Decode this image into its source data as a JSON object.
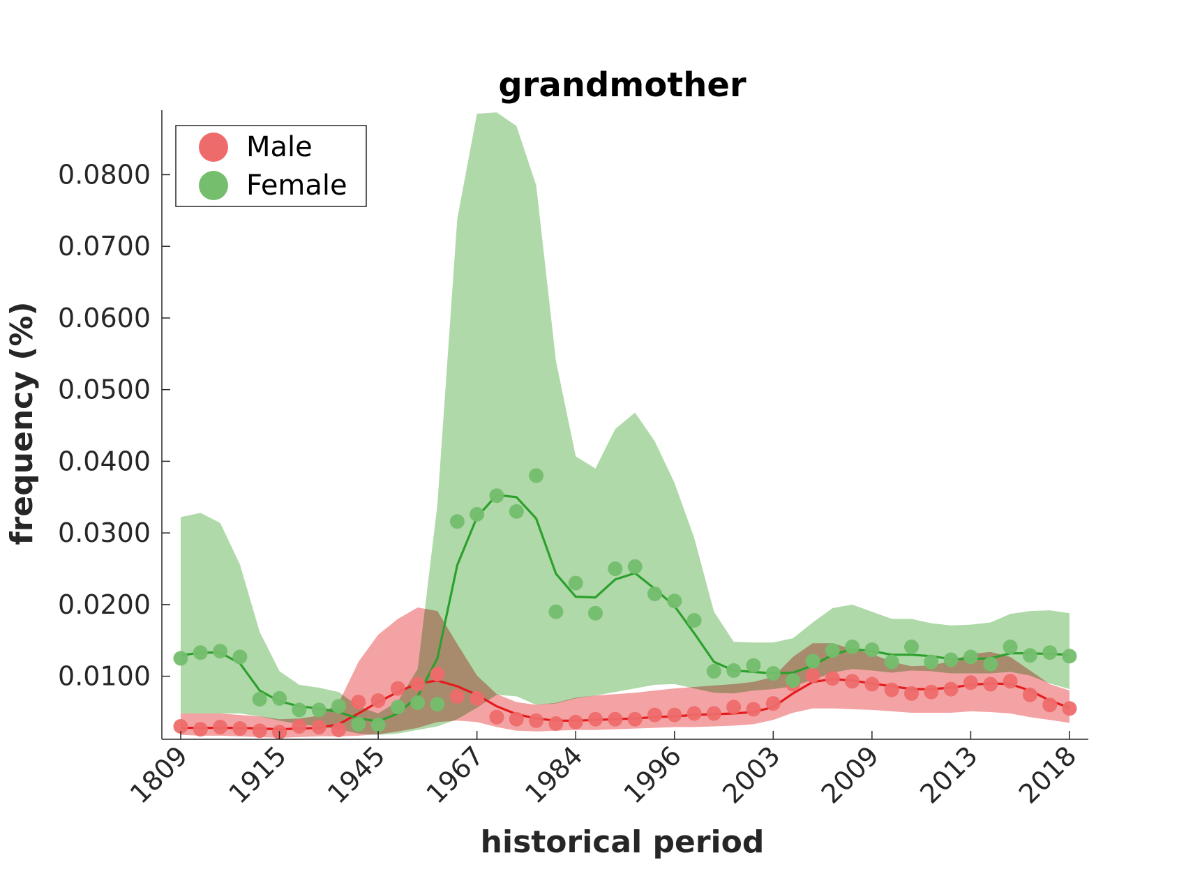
{
  "colors": {
    "male": "#e41a1c",
    "male_marker": "#ee6b6c",
    "male_band": "#f4a3a4",
    "female": "#2ca02c",
    "female_marker": "#74be6d",
    "female_band": "#afd9a8",
    "axis": "#262626"
  },
  "chart_data": {
    "type": "line",
    "title": "grandmother",
    "xlabel": "historical period",
    "ylabel": "frequency (%)",
    "ylim": [
      0.0012,
      0.089
    ],
    "yticks": [
      0.01,
      0.02,
      0.03,
      0.04,
      0.05,
      0.06,
      0.07,
      0.08
    ],
    "ytick_labels": [
      "0.0100",
      "0.0200",
      "0.0300",
      "0.0400",
      "0.0500",
      "0.0600",
      "0.0700",
      "0.0800"
    ],
    "x_tick_index": [
      0,
      5,
      10,
      15,
      20,
      25,
      30,
      35,
      40,
      45
    ],
    "x_tick_labels": [
      "1809",
      "1915",
      "1945",
      "1967",
      "1984",
      "1996",
      "2003",
      "2009",
      "2013",
      "2018"
    ],
    "n_points": 46,
    "legend": {
      "position": "top-left",
      "entries": [
        "Male",
        "Female"
      ]
    },
    "grid": false,
    "series": [
      {
        "name": "Male",
        "color_key": "male",
        "points": [
          0.003,
          0.0026,
          0.0029,
          0.0027,
          0.0024,
          0.0022,
          0.003,
          0.0029,
          0.0025,
          0.0064,
          0.0066,
          0.0083,
          0.0089,
          0.0103,
          0.0072,
          0.0069,
          0.0043,
          0.004,
          0.0038,
          0.0034,
          0.0036,
          0.004,
          0.004,
          0.004,
          0.0046,
          0.0046,
          0.0048,
          0.0048,
          0.0057,
          0.0054,
          0.0062,
          0.0089,
          0.0101,
          0.0097,
          0.0093,
          0.0089,
          0.0081,
          0.0076,
          0.0078,
          0.0082,
          0.0091,
          0.0089,
          0.0093,
          0.0074,
          0.006,
          0.0055
        ],
        "line": [
          0.0028,
          0.0028,
          0.0028,
          0.0028,
          0.0027,
          0.0026,
          0.0027,
          0.0028,
          0.0033,
          0.0048,
          0.0064,
          0.0078,
          0.009,
          0.0094,
          0.0086,
          0.0074,
          0.0058,
          0.0047,
          0.0041,
          0.0038,
          0.0038,
          0.0039,
          0.004,
          0.0041,
          0.0043,
          0.0044,
          0.0046,
          0.0047,
          0.0048,
          0.005,
          0.0057,
          0.0076,
          0.0092,
          0.0096,
          0.0094,
          0.009,
          0.0086,
          0.0082,
          0.0082,
          0.0084,
          0.0088,
          0.009,
          0.0089,
          0.008,
          0.0066,
          0.0056
        ],
        "band_upper": [
          0.0048,
          0.0048,
          0.0048,
          0.0046,
          0.0044,
          0.004,
          0.0041,
          0.0045,
          0.0063,
          0.012,
          0.0158,
          0.018,
          0.0196,
          0.0191,
          0.0145,
          0.0101,
          0.0075,
          0.0064,
          0.006,
          0.0063,
          0.007,
          0.0073,
          0.0075,
          0.0077,
          0.008,
          0.0083,
          0.0085,
          0.0087,
          0.0089,
          0.0092,
          0.0099,
          0.0127,
          0.0146,
          0.0146,
          0.0138,
          0.0131,
          0.012,
          0.0114,
          0.0115,
          0.0121,
          0.0131,
          0.0134,
          0.0127,
          0.0108,
          0.0089,
          0.008
        ],
        "band_lower": [
          0.0018,
          0.0017,
          0.0017,
          0.0016,
          0.0015,
          0.0014,
          0.0015,
          0.0016,
          0.0016,
          0.0017,
          0.0019,
          0.0023,
          0.0028,
          0.0036,
          0.0038,
          0.0036,
          0.0029,
          0.0024,
          0.0023,
          0.0024,
          0.0025,
          0.0025,
          0.0026,
          0.0027,
          0.0028,
          0.0029,
          0.0029,
          0.003,
          0.0031,
          0.0033,
          0.0039,
          0.0049,
          0.0055,
          0.0055,
          0.0054,
          0.0053,
          0.0051,
          0.0049,
          0.0049,
          0.0049,
          0.0051,
          0.005,
          0.0048,
          0.0043,
          0.0039,
          0.0035
        ]
      },
      {
        "name": "Female",
        "color_key": "female",
        "points": [
          0.0125,
          0.0133,
          0.0135,
          0.0127,
          0.0068,
          0.0069,
          0.0053,
          0.0053,
          0.0058,
          0.0033,
          0.0032,
          0.0057,
          0.0063,
          0.0061,
          0.0316,
          0.0326,
          0.0352,
          0.033,
          0.038,
          0.019,
          0.023,
          0.0188,
          0.025,
          0.0253,
          0.0215,
          0.0205,
          0.0178,
          0.0107,
          0.0108,
          0.0115,
          0.0104,
          0.0094,
          0.0121,
          0.0136,
          0.0141,
          0.0137,
          0.012,
          0.0141,
          0.012,
          0.0123,
          0.0127,
          0.0117,
          0.0141,
          0.0129,
          0.0133,
          0.0128
        ],
        "line": [
          0.0129,
          0.0133,
          0.0133,
          0.0118,
          0.008,
          0.0065,
          0.0058,
          0.0055,
          0.005,
          0.0041,
          0.0037,
          0.0048,
          0.0072,
          0.0125,
          0.0255,
          0.0322,
          0.0353,
          0.035,
          0.032,
          0.0243,
          0.0211,
          0.021,
          0.0235,
          0.0244,
          0.0222,
          0.0198,
          0.016,
          0.012,
          0.0108,
          0.0106,
          0.0104,
          0.0105,
          0.0115,
          0.013,
          0.0138,
          0.0135,
          0.013,
          0.013,
          0.0128,
          0.0124,
          0.0124,
          0.0125,
          0.0132,
          0.0132,
          0.0131,
          0.013
        ],
        "band_upper": [
          0.0322,
          0.0328,
          0.0314,
          0.0256,
          0.0162,
          0.0107,
          0.0088,
          0.0084,
          0.0078,
          0.0058,
          0.0048,
          0.0065,
          0.011,
          0.034,
          0.0738,
          0.0885,
          0.0887,
          0.0868,
          0.0785,
          0.054,
          0.0407,
          0.039,
          0.0445,
          0.0468,
          0.0428,
          0.037,
          0.0293,
          0.019,
          0.0148,
          0.0147,
          0.0147,
          0.0153,
          0.0175,
          0.0195,
          0.02,
          0.019,
          0.018,
          0.018,
          0.0174,
          0.0171,
          0.0172,
          0.0175,
          0.0187,
          0.0191,
          0.0192,
          0.0188
        ],
        "band_lower": [
          0.0048,
          0.0048,
          0.0048,
          0.0048,
          0.0044,
          0.0038,
          0.0033,
          0.003,
          0.0026,
          0.002,
          0.0018,
          0.002,
          0.0025,
          0.003,
          0.004,
          0.0056,
          0.0074,
          0.0072,
          0.006,
          0.0062,
          0.0069,
          0.0073,
          0.0078,
          0.0083,
          0.0088,
          0.0089,
          0.0083,
          0.0077,
          0.0076,
          0.008,
          0.0082,
          0.0086,
          0.0095,
          0.0105,
          0.011,
          0.0108,
          0.0105,
          0.0108,
          0.0107,
          0.0104,
          0.0104,
          0.0104,
          0.0106,
          0.0101,
          0.009,
          0.0082
        ]
      }
    ]
  }
}
